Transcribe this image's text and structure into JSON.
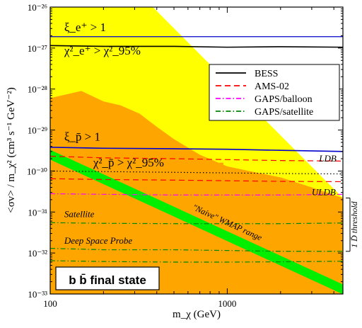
{
  "chart_data": {
    "type": "line",
    "title": "",
    "xlabel": "m_χ (GeV)",
    "ylabel": "<σv> / m_χ² (cm³ s⁻¹ GeV⁻²)",
    "x_scale": "log",
    "y_scale": "log",
    "xlim": [
      100,
      4500
    ],
    "ylim": [
      1e-33,
      1e-26
    ],
    "x_ticks": [
      "100",
      "1000"
    ],
    "y_ticks": [
      "10⁻³³",
      "10⁻³²",
      "10⁻³¹",
      "10⁻³⁰",
      "10⁻²⁹",
      "10⁻²⁸",
      "10⁻²⁷",
      "10⁻²⁶"
    ],
    "colors": {
      "allowed_region": "#ffff00",
      "excluded_region": "#ffa500",
      "wmap_band": "#00ee00",
      "bess": "#000000",
      "ams02": "#ff0000",
      "gaps_balloon": "#ff00ff",
      "gaps_satellite": "#008800",
      "positron_limit": "#0000cc"
    },
    "legend": {
      "position": "top-right",
      "entries": [
        {
          "name": "BESS",
          "style": "solid",
          "color": "#000000"
        },
        {
          "name": "AMS-02",
          "style": "dashed",
          "color": "#ff0000"
        },
        {
          "name": "GAPS/balloon",
          "style": "dash-dot",
          "color": "#ff00ff"
        },
        {
          "name": "GAPS/satellite",
          "style": "dash-dot",
          "color": "#008800"
        }
      ]
    },
    "series": [
      {
        "name": "BESS",
        "style": "solid",
        "color": "#000000",
        "x": [
          100,
          200,
          500,
          1000,
          2000,
          4500
        ],
        "y": [
          1.15e-27,
          1.1e-27,
          1.1e-27,
          1.05e-27,
          1.08e-27,
          1.05e-27
        ]
      },
      {
        "name": "BESS",
        "style": "solid",
        "color": "#0000cc",
        "x": [
          100,
          200,
          500,
          1000,
          2000,
          4500
        ],
        "y": [
          3.8e-30,
          3.6e-30,
          3.5e-30,
          3.4e-30,
          3.2e-30,
          3e-30
        ]
      },
      {
        "name": "AMS-02",
        "style": "dashed",
        "color": "#ff0000",
        "x": [
          100,
          200,
          500,
          1000,
          2000,
          4500
        ],
        "y": [
          2.3e-30,
          2.1e-30,
          2e-30,
          1.9e-30,
          1.8e-30,
          1.75e-30
        ]
      },
      {
        "name": "AMS-02",
        "style": "dotted",
        "color": "#000000",
        "x": [
          100,
          200,
          500,
          1000,
          2000,
          4500
        ],
        "y": [
          1e-30,
          9.7e-31,
          9.3e-31,
          9e-31,
          8.7e-31,
          8.5e-31
        ]
      },
      {
        "name": "AMS-02",
        "style": "dashed",
        "color": "#ff0000",
        "x": [
          100,
          200,
          500,
          1000,
          2000,
          4500
        ],
        "y": [
          6.5e-31,
          6.2e-31,
          6e-31,
          5.8e-31,
          5.6e-31,
          5.5e-31
        ]
      },
      {
        "name": "GAPS/balloon",
        "style": "dash-dot",
        "color": "#ff00ff",
        "x": [
          100,
          200,
          500,
          1000,
          2000,
          4500
        ],
        "y": [
          2.8e-31,
          2.7e-31,
          2.6e-31,
          2.6e-31,
          2.6e-31,
          2.7e-31
        ]
      },
      {
        "name": "GAPS/satellite",
        "style": "dash-dot",
        "color": "#008800",
        "x": [
          100,
          200,
          500,
          1000,
          2000,
          4500
        ],
        "y": [
          5.5e-32,
          5.3e-32,
          5.2e-32,
          5.2e-32,
          5.2e-32,
          5.4e-32
        ]
      },
      {
        "name": "GAPS/satellite",
        "style": "dash-dot",
        "color": "#008800",
        "x": [
          100,
          200,
          500,
          1000,
          2000,
          4500
        ],
        "y": [
          1.3e-32,
          1.2e-32,
          1.2e-32,
          1.15e-32,
          1.1e-32,
          1.1e-32
        ]
      },
      {
        "name": "GAPS/satellite",
        "style": "dash-dot",
        "color": "#008800",
        "x": [
          100,
          200,
          500,
          1000,
          2000,
          4500
        ],
        "y": [
          6.5e-33,
          6.2e-33,
          6e-33,
          6e-33,
          6.1e-33,
          6.3e-33
        ]
      }
    ],
    "positron_limit_y": 1.9e-27,
    "allowed_boundary": [
      [
        100,
        1e-26
      ],
      [
        380,
        1e-26
      ],
      [
        4500,
        2.2e-31
      ]
    ],
    "excluded_boundary": [
      [
        100,
        6e-29
      ],
      [
        150,
        9e-29
      ],
      [
        200,
        5e-29
      ],
      [
        250,
        4e-29
      ],
      [
        320,
        2.5e-29
      ],
      [
        400,
        1.2e-29
      ],
      [
        500,
        6e-30
      ],
      [
        700,
        2.5e-30
      ],
      [
        1000,
        1.3e-30
      ],
      [
        1500,
        9e-31
      ],
      [
        2000,
        7e-31
      ],
      [
        3000,
        4e-31
      ],
      [
        4500,
        2.2e-31
      ]
    ],
    "wmap_band_center": [
      [
        100,
        2.5e-30
      ],
      [
        4500,
        1.3e-33
      ]
    ],
    "wmap_band_halfwidth_decades": 0.12,
    "wmap_band_label_anchor": [
      1000,
      1e-31
    ],
    "threshold_bracket_y": [
      2.2e-31,
      1.1e-32
    ],
    "annotations": [
      {
        "text": "ξ_e⁺ > 1",
        "x": 120,
        "y": 2.6e-27,
        "style": "normal",
        "size": 17
      },
      {
        "text": "χ²_e⁺ > χ²_95%",
        "x": 120,
        "y": 7e-28,
        "style": "normal",
        "size": 17
      },
      {
        "text": "ξ_p̄ > 1",
        "x": 120,
        "y": 5.5e-30,
        "style": "normal",
        "size": 17
      },
      {
        "text": "χ²_p̄ > χ²_95%",
        "x": 175,
        "y": 1.3e-30,
        "style": "normal",
        "size": 17
      },
      {
        "text": "LDB",
        "x": 3300,
        "y": 1.7e-30,
        "style": "italic",
        "size": 13
      },
      {
        "text": "ULDB",
        "x": 3000,
        "y": 2.6e-31,
        "style": "italic",
        "size": 13
      },
      {
        "text": "Satellite",
        "x": 120,
        "y": 7.5e-32,
        "style": "italic",
        "size": 13
      },
      {
        "text": "Deep Space Probe",
        "x": 120,
        "y": 1.7e-32,
        "style": "italic",
        "size": 13
      },
      {
        "text": "\"Naive\" WMAP range",
        "x": 0,
        "y": 0,
        "style": "italic",
        "size": 12
      },
      {
        "text": "1 D̄ threshold",
        "x": 0,
        "y": 0,
        "style": "italic",
        "size": 12
      }
    ],
    "final_state_label": "b b̄ final state"
  }
}
